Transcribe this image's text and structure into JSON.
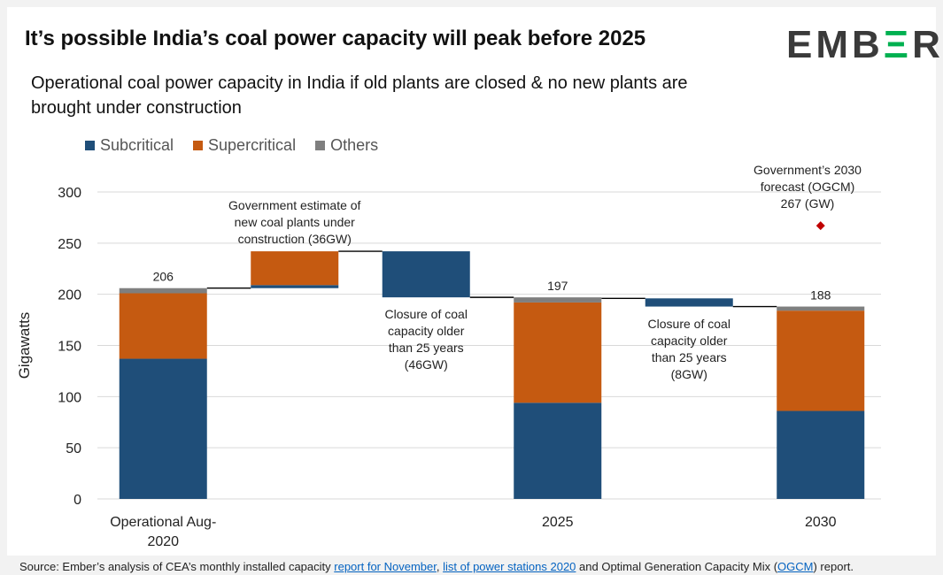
{
  "title": "It’s possible India’s coal power capacity will peak before 2025",
  "subtitle": "Operational coal power capacity in India if old plants are closed & no new plants are brought under construction",
  "logo": {
    "prefix": "EMB",
    "mark": "Ξ",
    "suffix": "R"
  },
  "source": {
    "prefix": "Source:  Ember’s analysis of CEA’s monthly installed capacity ",
    "link1": "report for November",
    "sep1": ", ",
    "link2": "list of power stations 2020",
    "mid": " and Optimal Generation Capacity Mix (",
    "link3": "OGCM",
    "suffix": ") report."
  },
  "colors": {
    "subcritical": "#1f4e79",
    "supercritical": "#c55a11",
    "others": "#7f7f7f",
    "marker": "#c00000",
    "connector": "#000000",
    "grid": "#d9d9d9"
  },
  "chart_data": {
    "type": "bar",
    "subtype": "waterfall-stacked",
    "ylabel": "Gigawatts",
    "ylim": [
      0,
      300
    ],
    "yticks": [
      0,
      50,
      100,
      150,
      200,
      250,
      300
    ],
    "grid": true,
    "legend": [
      {
        "name": "Subcritical",
        "key": "subcritical"
      },
      {
        "name": "Supercritical",
        "key": "supercritical"
      },
      {
        "name": "Others",
        "key": "others"
      }
    ],
    "legend_position": "top-left",
    "columns": [
      {
        "category": "Operational Aug-2020",
        "kind": "total",
        "segments": [
          {
            "series": "subcritical",
            "from": 0,
            "to": 137
          },
          {
            "series": "supercritical",
            "from": 137,
            "to": 201
          },
          {
            "series": "others",
            "from": 201,
            "to": 206
          }
        ],
        "total_label": "206"
      },
      {
        "category": "",
        "kind": "increase",
        "segments": [
          {
            "series": "subcritical",
            "from": 206,
            "to": 209
          },
          {
            "series": "supercritical",
            "from": 209,
            "to": 242
          }
        ],
        "annotation": "Government estimate of new coal plants under construction (36GW)"
      },
      {
        "category": "",
        "kind": "decrease",
        "segments": [
          {
            "series": "subcritical",
            "from": 197,
            "to": 242
          }
        ],
        "annotation": "Closure of coal capacity older than 25 years (46GW)"
      },
      {
        "category": "2025",
        "kind": "total",
        "segments": [
          {
            "series": "subcritical",
            "from": 0,
            "to": 94
          },
          {
            "series": "supercritical",
            "from": 94,
            "to": 192
          },
          {
            "series": "others",
            "from": 192,
            "to": 197
          }
        ],
        "total_label": "197"
      },
      {
        "category": "",
        "kind": "decrease",
        "segments": [
          {
            "series": "subcritical",
            "from": 188,
            "to": 196
          }
        ],
        "annotation": "Closure of coal capacity older than 25 years (8GW)"
      },
      {
        "category": "2030",
        "kind": "total",
        "segments": [
          {
            "series": "subcritical",
            "from": 0,
            "to": 86
          },
          {
            "series": "supercritical",
            "from": 86,
            "to": 184
          },
          {
            "series": "others",
            "from": 184,
            "to": 188
          }
        ],
        "total_label": "188"
      }
    ],
    "connectors": [
      206,
      242,
      197,
      196,
      188
    ],
    "marker": {
      "category": "2030",
      "value": 267,
      "label": "Government’s 2030 forecast (OGCM) 267 (GW)"
    }
  }
}
